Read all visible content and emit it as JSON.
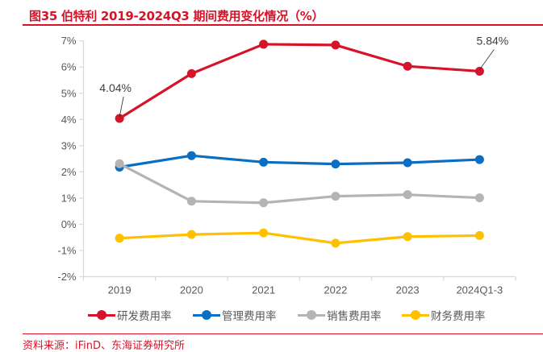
{
  "header": {
    "title": "图35  伯特利 2019-2024Q3 期间费用变化情况（%）"
  },
  "footer": {
    "source": "资料来源：iFinD、东海证券研究所"
  },
  "colors": {
    "brand_red": "#d7132a",
    "rd": "#d7132a",
    "mgmt": "#0a6fc2",
    "sales": "#b4b4b4",
    "fin": "#ffc000"
  },
  "chart_data": {
    "type": "line",
    "title": "伯特利 2019-2024Q3 期间费用变化情况（%）",
    "xlabel": "",
    "ylabel": "",
    "categories": [
      "2019",
      "2020",
      "2021",
      "2022",
      "2023",
      "2024Q1-3"
    ],
    "ylim": [
      -2,
      7
    ],
    "yticks": [
      -2,
      -1,
      0,
      1,
      2,
      3,
      4,
      5,
      6,
      7
    ],
    "ytick_labels": [
      "-2%",
      "-1%",
      "0%",
      "1%",
      "2%",
      "3%",
      "4%",
      "5%",
      "6%",
      "7%"
    ],
    "grid": false,
    "legend_position": "bottom",
    "series": [
      {
        "name": "研发费用率",
        "color": "#d7132a",
        "values": [
          4.04,
          5.75,
          6.87,
          6.84,
          6.03,
          5.84
        ]
      },
      {
        "name": "管理费用率",
        "color": "#0a6fc2",
        "values": [
          2.18,
          2.62,
          2.37,
          2.3,
          2.35,
          2.47
        ]
      },
      {
        "name": "销售费用率",
        "color": "#b4b4b4",
        "values": [
          2.31,
          0.88,
          0.82,
          1.07,
          1.13,
          1.01
        ]
      },
      {
        "name": "财务费用率",
        "color": "#ffc000",
        "values": [
          -0.53,
          -0.39,
          -0.33,
          -0.72,
          -0.47,
          -0.43
        ]
      }
    ],
    "annotations": [
      {
        "series": "研发费用率",
        "category": "2019",
        "text": "4.04%"
      },
      {
        "series": "研发费用率",
        "category": "2024Q1-3",
        "text": "5.84%"
      }
    ]
  }
}
